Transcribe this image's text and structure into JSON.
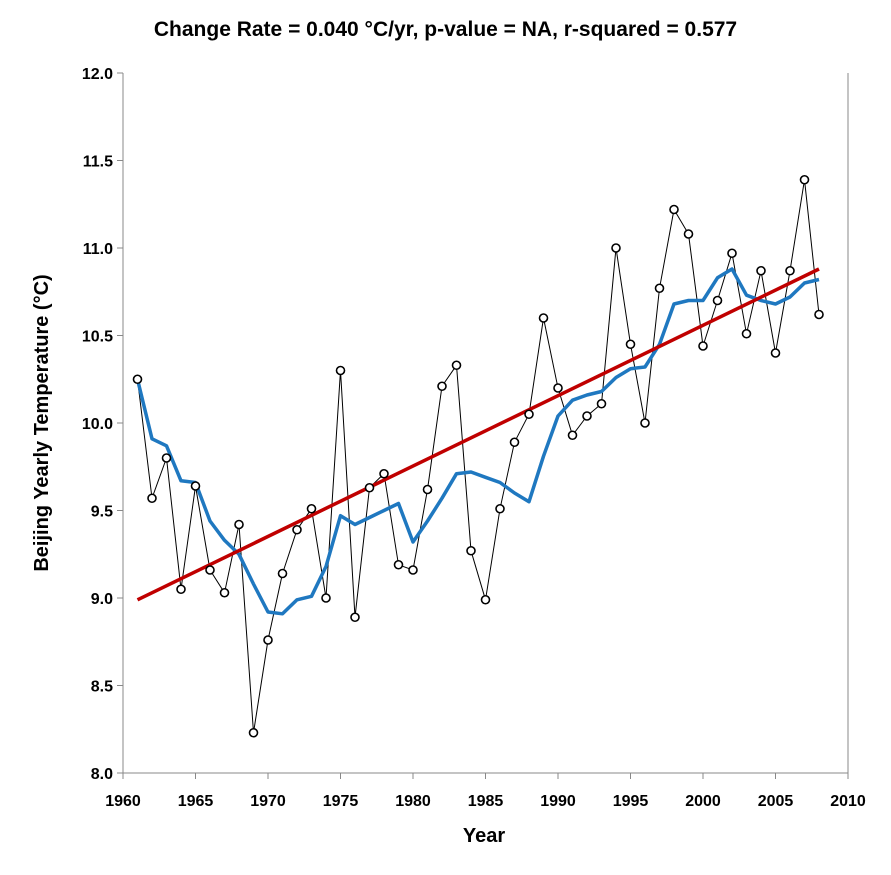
{
  "chart_data": {
    "type": "line",
    "title": "Change Rate =  0.040 °C/yr,  p-value =  NA,  r-squared =  0.577",
    "xlabel": "Year",
    "ylabel": "Beijing Yearly Temperature (°C)",
    "xlim": [
      1960,
      2010
    ],
    "ylim": [
      8.0,
      12.0
    ],
    "xticks": [
      "1960",
      "1965",
      "1970",
      "1975",
      "1980",
      "1985",
      "1990",
      "1995",
      "2000",
      "2005",
      "2010"
    ],
    "yticks": [
      "8.0",
      "8.5",
      "9.0",
      "9.5",
      "10.0",
      "10.5",
      "11.0",
      "11.5",
      "12.0"
    ],
    "grid": false,
    "legend": "none",
    "series": [
      {
        "role": "observed",
        "color": "#000000",
        "x": [
          1961,
          1962,
          1963,
          1964,
          1965,
          1966,
          1967,
          1968,
          1969,
          1970,
          1971,
          1972,
          1973,
          1974,
          1975,
          1976,
          1977,
          1978,
          1979,
          1980,
          1981,
          1982,
          1983,
          1984,
          1985,
          1986,
          1987,
          1988,
          1989,
          1990,
          1991,
          1992,
          1993,
          1994,
          1995,
          1996,
          1997,
          1998,
          1999,
          2000,
          2001,
          2002,
          2003,
          2004,
          2005,
          2006,
          2007,
          2008
        ],
        "y": [
          10.25,
          9.57,
          9.8,
          9.05,
          9.64,
          9.16,
          9.03,
          9.42,
          8.23,
          8.76,
          9.14,
          9.39,
          9.51,
          9.0,
          10.3,
          8.89,
          9.63,
          9.71,
          9.19,
          9.16,
          9.62,
          10.21,
          10.33,
          9.27,
          8.99,
          9.51,
          9.89,
          10.05,
          10.6,
          10.2,
          9.93,
          10.04,
          10.11,
          11.0,
          10.45,
          10.0,
          10.77,
          11.22,
          11.08,
          10.44,
          10.7,
          10.97,
          10.51,
          10.87,
          10.4,
          10.87,
          11.39,
          10.62
        ]
      },
      {
        "role": "smoothed",
        "color": "#1f78c0",
        "x": [
          1961,
          1962,
          1963,
          1964,
          1965,
          1966,
          1967,
          1968,
          1969,
          1970,
          1971,
          1972,
          1973,
          1974,
          1975,
          1976,
          1977,
          1978,
          1979,
          1980,
          1981,
          1982,
          1983,
          1984,
          1985,
          1986,
          1987,
          1988,
          1989,
          1990,
          1991,
          1992,
          1993,
          1994,
          1995,
          1996,
          1997,
          1998,
          1999,
          2000,
          2001,
          2002,
          2003,
          2004,
          2005,
          2006,
          2007,
          2008
        ],
        "y": [
          10.25,
          9.91,
          9.87,
          9.67,
          9.66,
          9.44,
          9.33,
          9.25,
          9.08,
          8.92,
          8.91,
          8.99,
          9.01,
          9.18,
          9.47,
          9.42,
          9.46,
          9.5,
          9.54,
          9.32,
          9.44,
          9.57,
          9.71,
          9.72,
          9.69,
          9.66,
          9.6,
          9.55,
          9.81,
          10.04,
          10.13,
          10.16,
          10.18,
          10.26,
          10.31,
          10.32,
          10.45,
          10.68,
          10.7,
          10.7,
          10.83,
          10.88,
          10.73,
          10.7,
          10.68,
          10.72,
          10.8,
          10.82
        ]
      },
      {
        "role": "trend",
        "color": "#c00000",
        "x": [
          1961,
          2008
        ],
        "y": [
          8.99,
          10.88
        ]
      }
    ]
  }
}
